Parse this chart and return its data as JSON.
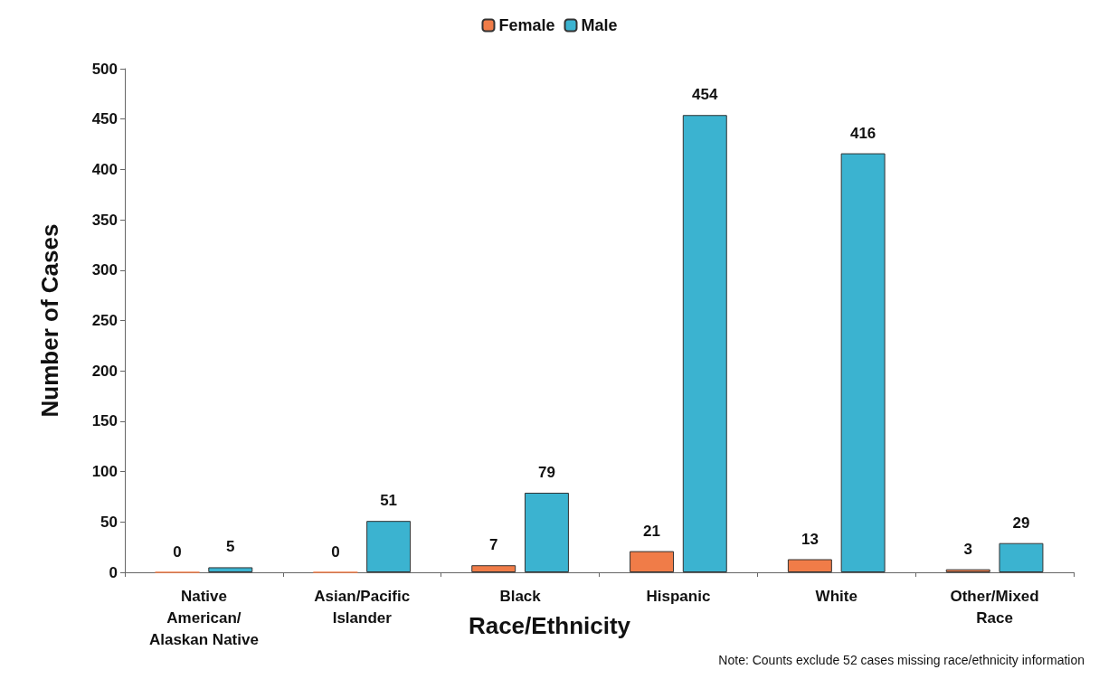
{
  "chart_data": {
    "type": "bar",
    "xlabel": "Race/Ethnicity",
    "ylabel": "Number of Cases",
    "categories": [
      "Native\nAmerican/\nAlaskan Native",
      "Asian/Pacific\nIslander",
      "Black",
      "Hispanic",
      "White",
      "Other/Mixed\nRace"
    ],
    "series": [
      {
        "name": "Female",
        "color": "#f07c48",
        "values": [
          0,
          0,
          7,
          21,
          13,
          3
        ]
      },
      {
        "name": "Male",
        "color": "#3bb3d0",
        "values": [
          5,
          51,
          79,
          454,
          416,
          29
        ]
      }
    ],
    "ylim": [
      0,
      500
    ],
    "yticks": [
      0,
      50,
      100,
      150,
      200,
      250,
      300,
      350,
      400,
      450,
      500
    ],
    "grid": false,
    "legend": "top",
    "data_labels": true,
    "annotations": [
      "Note: Counts exclude 52 cases missing race/ethnicity information"
    ]
  }
}
